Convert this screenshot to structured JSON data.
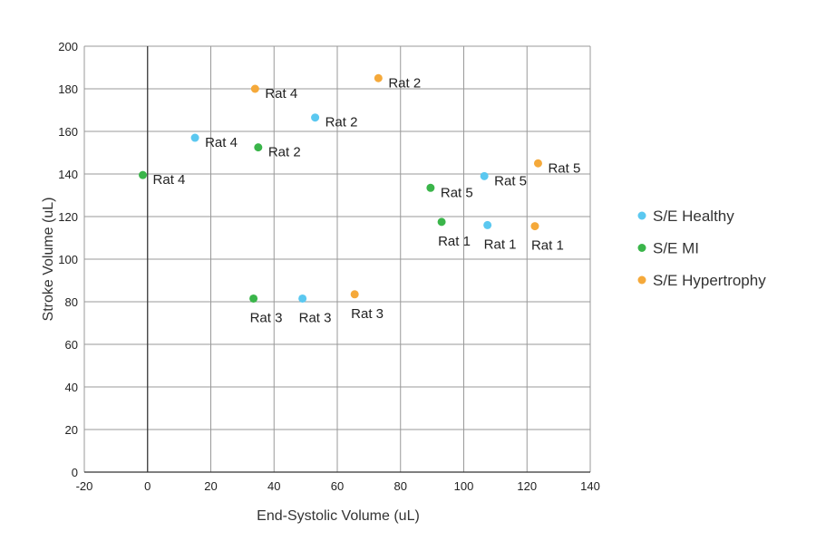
{
  "chart_data": {
    "type": "scatter",
    "xlabel": "End-Systolic Volume (uL)",
    "ylabel": "Stroke Volume (uL)",
    "xlim": [
      -20,
      140
    ],
    "ylim": [
      0,
      200
    ],
    "x_ticks": [
      -20,
      0,
      20,
      40,
      60,
      80,
      100,
      120,
      140
    ],
    "y_ticks": [
      0,
      20,
      40,
      60,
      80,
      100,
      120,
      140,
      160,
      180,
      200
    ],
    "grid": true,
    "legend_position": "right",
    "series": [
      {
        "name": "S/E Healthy",
        "color": "#5bc8f0",
        "points": [
          {
            "x": 107.5,
            "y": 116,
            "label": "Rat 1"
          },
          {
            "x": 53,
            "y": 166.5,
            "label": "Rat 2"
          },
          {
            "x": 49,
            "y": 81.5,
            "label": "Rat 3"
          },
          {
            "x": 15,
            "y": 157,
            "label": "Rat 4"
          },
          {
            "x": 106.5,
            "y": 139,
            "label": "Rat 5"
          }
        ]
      },
      {
        "name": "S/E MI",
        "color": "#3ab54a",
        "points": [
          {
            "x": 93,
            "y": 117.5,
            "label": "Rat 1"
          },
          {
            "x": 35,
            "y": 152.5,
            "label": "Rat 2"
          },
          {
            "x": 33.5,
            "y": 81.5,
            "label": "Rat 3"
          },
          {
            "x": -1.5,
            "y": 139.5,
            "label": "Rat 4"
          },
          {
            "x": 89.5,
            "y": 133.5,
            "label": "Rat 5"
          }
        ]
      },
      {
        "name": "S/E Hypertrophy",
        "color": "#f5a93a",
        "points": [
          {
            "x": 122.5,
            "y": 115.5,
            "label": "Rat 1"
          },
          {
            "x": 73,
            "y": 185,
            "label": "Rat 2"
          },
          {
            "x": 65.5,
            "y": 83.5,
            "label": "Rat 3"
          },
          {
            "x": 34,
            "y": 180,
            "label": "Rat 4"
          },
          {
            "x": 123.5,
            "y": 145,
            "label": "Rat 5"
          }
        ]
      }
    ]
  }
}
